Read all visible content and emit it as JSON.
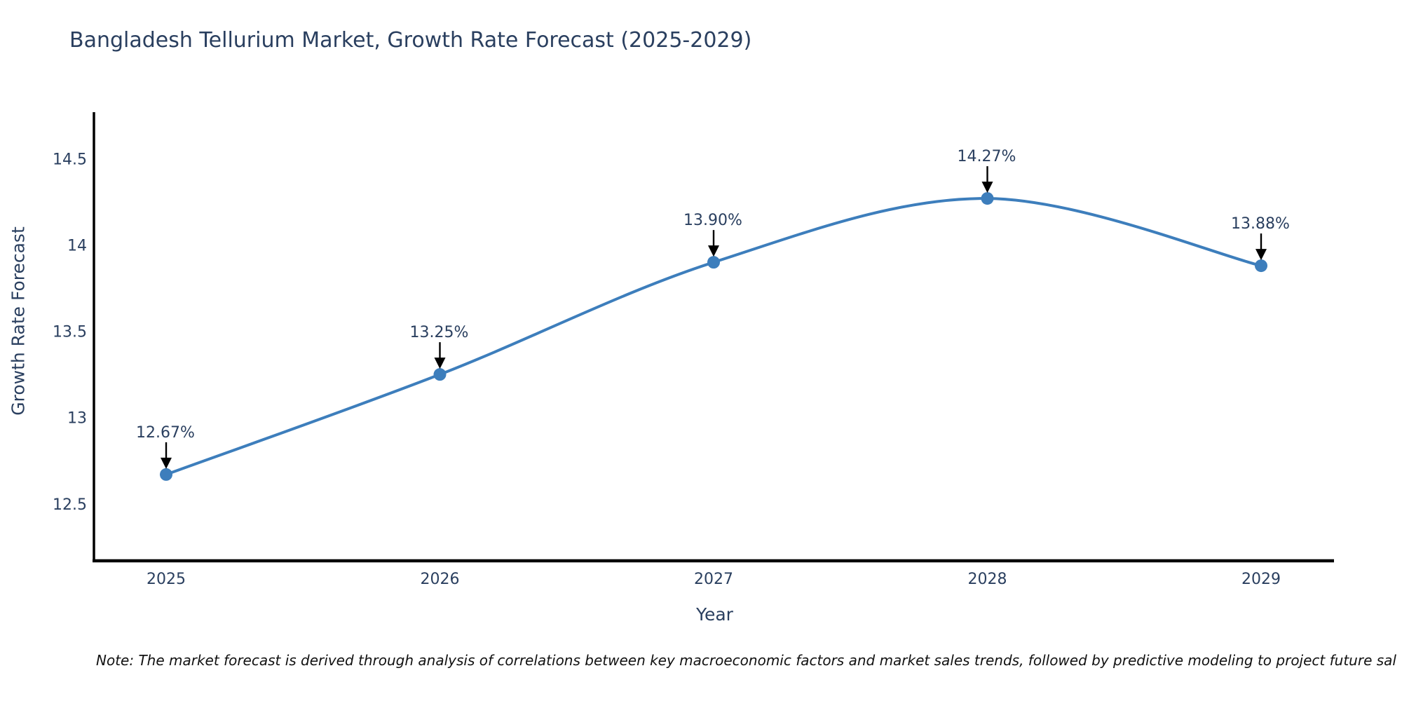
{
  "chart_data": {
    "type": "line",
    "title": "Bangladesh Tellurium Market, Growth Rate Forecast (2025-2029)",
    "xlabel": "Year",
    "ylabel": "Growth Rate Forecast",
    "categories": [
      "2025",
      "2026",
      "2027",
      "2028",
      "2029"
    ],
    "series": [
      {
        "name": "Growth Rate Forecast",
        "values": [
          12.67,
          13.25,
          13.9,
          14.27,
          13.88
        ]
      }
    ],
    "point_labels": [
      "12.67%",
      "13.25%",
      "13.90%",
      "14.27%",
      "13.88%"
    ],
    "y_ticks": [
      {
        "value": 12.5,
        "label": "12.5"
      },
      {
        "value": 13,
        "label": "13"
      },
      {
        "value": 13.5,
        "label": "13.5"
      },
      {
        "value": 14,
        "label": "14"
      },
      {
        "value": 14.5,
        "label": "14.5"
      }
    ],
    "ylim": [
      12.17,
      14.77
    ],
    "grid": false,
    "legend": "none",
    "smooth": true,
    "colors": {
      "line": "#3d7ebc",
      "marker": "#3d7ebc",
      "axis": "#000000",
      "text": "#2a3f5f",
      "annotation_arrow": "#000000",
      "background": "#ffffff"
    }
  },
  "footnote": {
    "text": "Note: The market forecast is derived through analysis of correlations between key macroeconomic factors and market sales trends, followed by predictive modeling to project future sal"
  }
}
